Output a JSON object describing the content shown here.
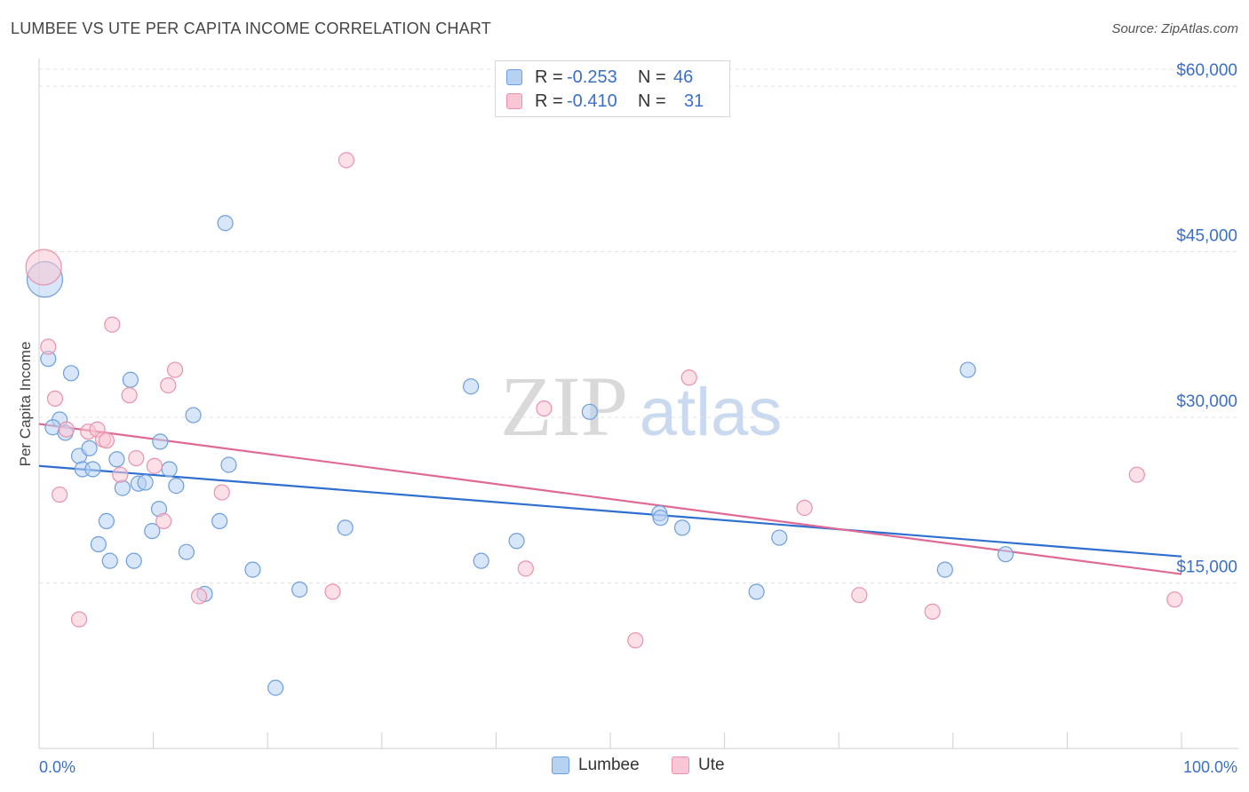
{
  "header": {
    "title": "LUMBEE VS UTE PER CAPITA INCOME CORRELATION CHART",
    "source": "Source: ZipAtlas.com"
  },
  "watermark": {
    "part1": "ZIP",
    "part2": "atlas"
  },
  "legend_top": {
    "rows": [
      {
        "r_label": "R =",
        "r_value": "-0.253",
        "n_label": "N =",
        "n_value": "46"
      },
      {
        "r_label": "R =",
        "r_value": "-0.410",
        "n_label": "N =",
        "n_value": "31"
      }
    ]
  },
  "legend_bottom": {
    "lumbee": "Lumbee",
    "ute": "Ute"
  },
  "colors": {
    "lumbee_fill": "#b7d1f3",
    "lumbee_stroke": "#6e9fdc",
    "lumbee_line": "#2f6fd0",
    "ute_fill": "#f9c6d5",
    "ute_stroke": "#e991ad",
    "ute_line": "#e06a95",
    "axis_label": "#3b6fc7",
    "grid": "#e3e3e3"
  },
  "chart_data": {
    "type": "scatter",
    "title": "LUMBEE VS UTE PER CAPITA INCOME CORRELATION CHART",
    "xlabel": "",
    "ylabel": "Per Capita Income",
    "xlim": [
      0,
      100
    ],
    "ylim": [
      0,
      62500
    ],
    "x_tick_labels": [
      "0.0%",
      "100.0%"
    ],
    "y_ticks": [
      15000,
      30000,
      45000,
      60000
    ],
    "y_tick_labels": [
      "$15,000",
      "$30,000",
      "$45,000",
      "$60,000"
    ],
    "grid": true,
    "legend_position": "bottom",
    "series": [
      {
        "name": "Lumbee",
        "r": -0.253,
        "n": 46,
        "trend": {
          "x": [
            0,
            100
          ],
          "y": [
            25600,
            17400
          ]
        },
        "points": [
          {
            "x": 0.5,
            "y": 42500,
            "big": true
          },
          {
            "x": 0.8,
            "y": 35300
          },
          {
            "x": 1.8,
            "y": 29800
          },
          {
            "x": 1.2,
            "y": 29100
          },
          {
            "x": 2.3,
            "y": 28600
          },
          {
            "x": 2.8,
            "y": 34000
          },
          {
            "x": 3.5,
            "y": 26500
          },
          {
            "x": 3.8,
            "y": 25300
          },
          {
            "x": 4.4,
            "y": 27200
          },
          {
            "x": 4.7,
            "y": 25300
          },
          {
            "x": 5.2,
            "y": 18500
          },
          {
            "x": 5.9,
            "y": 20600
          },
          {
            "x": 6.2,
            "y": 17000
          },
          {
            "x": 6.8,
            "y": 26200
          },
          {
            "x": 7.3,
            "y": 23600
          },
          {
            "x": 8.0,
            "y": 33400
          },
          {
            "x": 8.3,
            "y": 17000
          },
          {
            "x": 8.7,
            "y": 24000
          },
          {
            "x": 9.3,
            "y": 24100
          },
          {
            "x": 9.9,
            "y": 19700
          },
          {
            "x": 10.5,
            "y": 21700
          },
          {
            "x": 10.6,
            "y": 27800
          },
          {
            "x": 11.4,
            "y": 25300
          },
          {
            "x": 12.0,
            "y": 23800
          },
          {
            "x": 12.9,
            "y": 17800
          },
          {
            "x": 13.5,
            "y": 30200
          },
          {
            "x": 14.5,
            "y": 14000
          },
          {
            "x": 15.8,
            "y": 20600
          },
          {
            "x": 16.3,
            "y": 47600
          },
          {
            "x": 16.6,
            "y": 25700
          },
          {
            "x": 18.7,
            "y": 16200
          },
          {
            "x": 20.7,
            "y": 5500
          },
          {
            "x": 22.8,
            "y": 14400
          },
          {
            "x": 26.8,
            "y": 20000
          },
          {
            "x": 37.8,
            "y": 32800
          },
          {
            "x": 38.7,
            "y": 17000
          },
          {
            "x": 41.8,
            "y": 18800
          },
          {
            "x": 48.2,
            "y": 30500
          },
          {
            "x": 54.3,
            "y": 21300
          },
          {
            "x": 54.4,
            "y": 20900
          },
          {
            "x": 56.3,
            "y": 20000
          },
          {
            "x": 62.8,
            "y": 14200
          },
          {
            "x": 64.8,
            "y": 19100
          },
          {
            "x": 79.3,
            "y": 16200
          },
          {
            "x": 81.3,
            "y": 34300
          },
          {
            "x": 84.6,
            "y": 17600
          }
        ]
      },
      {
        "name": "Ute",
        "r": -0.41,
        "n": 31,
        "trend": {
          "x": [
            0,
            100
          ],
          "y": [
            29400,
            15800
          ]
        },
        "points": [
          {
            "x": 0.4,
            "y": 43600,
            "big": true
          },
          {
            "x": 0.8,
            "y": 36400
          },
          {
            "x": 1.4,
            "y": 31700
          },
          {
            "x": 1.8,
            "y": 23000
          },
          {
            "x": 2.4,
            "y": 28900
          },
          {
            "x": 3.5,
            "y": 11700
          },
          {
            "x": 4.3,
            "y": 28700
          },
          {
            "x": 5.1,
            "y": 28900
          },
          {
            "x": 5.6,
            "y": 28000
          },
          {
            "x": 5.9,
            "y": 27900
          },
          {
            "x": 6.4,
            "y": 38400
          },
          {
            "x": 7.1,
            "y": 24800
          },
          {
            "x": 7.9,
            "y": 32000
          },
          {
            "x": 8.5,
            "y": 26300
          },
          {
            "x": 10.1,
            "y": 25600
          },
          {
            "x": 10.9,
            "y": 20600
          },
          {
            "x": 11.3,
            "y": 32900
          },
          {
            "x": 11.9,
            "y": 34300
          },
          {
            "x": 14.0,
            "y": 13800
          },
          {
            "x": 16.0,
            "y": 23200
          },
          {
            "x": 25.7,
            "y": 14200
          },
          {
            "x": 26.9,
            "y": 53300
          },
          {
            "x": 42.6,
            "y": 16300
          },
          {
            "x": 44.2,
            "y": 30800
          },
          {
            "x": 52.2,
            "y": 9800
          },
          {
            "x": 56.9,
            "y": 33600
          },
          {
            "x": 67.0,
            "y": 21800
          },
          {
            "x": 71.8,
            "y": 13900
          },
          {
            "x": 78.2,
            "y": 12400
          },
          {
            "x": 96.1,
            "y": 24800
          },
          {
            "x": 99.4,
            "y": 13500
          }
        ]
      }
    ]
  }
}
